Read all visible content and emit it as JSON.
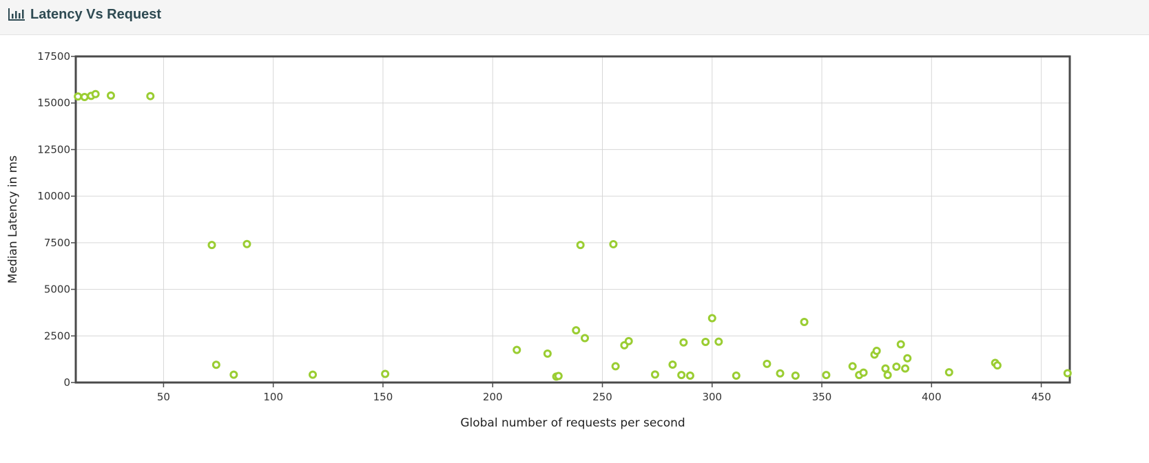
{
  "header": {
    "title": "Latency Vs Request",
    "icon": "bar-chart-icon"
  },
  "colors": {
    "marker": "#9acd32",
    "grid": "#d6d6d6",
    "frame": "#4a4a4a",
    "header_text": "#2e4a52"
  },
  "chart_data": {
    "type": "scatter",
    "xlabel": "Global number of requests per second",
    "ylabel": "Median Latency in ms",
    "xlim": [
      10,
      463
    ],
    "ylim": [
      0,
      17500
    ],
    "xticks": [
      50,
      100,
      150,
      200,
      250,
      300,
      350,
      400,
      450
    ],
    "yticks": [
      0,
      2500,
      5000,
      7500,
      10000,
      12500,
      15000,
      17500
    ],
    "grid": true,
    "points": [
      {
        "x": 11,
        "y": 15350
      },
      {
        "x": 14,
        "y": 15320
      },
      {
        "x": 17,
        "y": 15380
      },
      {
        "x": 19,
        "y": 15480
      },
      {
        "x": 26,
        "y": 15400
      },
      {
        "x": 44,
        "y": 15370
      },
      {
        "x": 72,
        "y": 7380
      },
      {
        "x": 88,
        "y": 7430
      },
      {
        "x": 74,
        "y": 950
      },
      {
        "x": 82,
        "y": 420
      },
      {
        "x": 118,
        "y": 420
      },
      {
        "x": 151,
        "y": 460
      },
      {
        "x": 211,
        "y": 1750
      },
      {
        "x": 225,
        "y": 1550
      },
      {
        "x": 229,
        "y": 320
      },
      {
        "x": 230,
        "y": 350
      },
      {
        "x": 238,
        "y": 2800
      },
      {
        "x": 240,
        "y": 7380
      },
      {
        "x": 242,
        "y": 2380
      },
      {
        "x": 255,
        "y": 7420
      },
      {
        "x": 256,
        "y": 870
      },
      {
        "x": 260,
        "y": 2000
      },
      {
        "x": 262,
        "y": 2220
      },
      {
        "x": 274,
        "y": 430
      },
      {
        "x": 282,
        "y": 960
      },
      {
        "x": 286,
        "y": 400
      },
      {
        "x": 287,
        "y": 2150
      },
      {
        "x": 290,
        "y": 370
      },
      {
        "x": 297,
        "y": 2180
      },
      {
        "x": 300,
        "y": 3450
      },
      {
        "x": 303,
        "y": 2190
      },
      {
        "x": 311,
        "y": 370
      },
      {
        "x": 325,
        "y": 1000
      },
      {
        "x": 331,
        "y": 490
      },
      {
        "x": 338,
        "y": 370
      },
      {
        "x": 342,
        "y": 3250
      },
      {
        "x": 352,
        "y": 400
      },
      {
        "x": 364,
        "y": 870
      },
      {
        "x": 367,
        "y": 400
      },
      {
        "x": 369,
        "y": 530
      },
      {
        "x": 374,
        "y": 1500
      },
      {
        "x": 375,
        "y": 1700
      },
      {
        "x": 379,
        "y": 750
      },
      {
        "x": 380,
        "y": 400
      },
      {
        "x": 384,
        "y": 850
      },
      {
        "x": 386,
        "y": 2050
      },
      {
        "x": 388,
        "y": 750
      },
      {
        "x": 389,
        "y": 1300
      },
      {
        "x": 408,
        "y": 550
      },
      {
        "x": 429,
        "y": 1050
      },
      {
        "x": 430,
        "y": 920
      },
      {
        "x": 462,
        "y": 500
      }
    ]
  }
}
